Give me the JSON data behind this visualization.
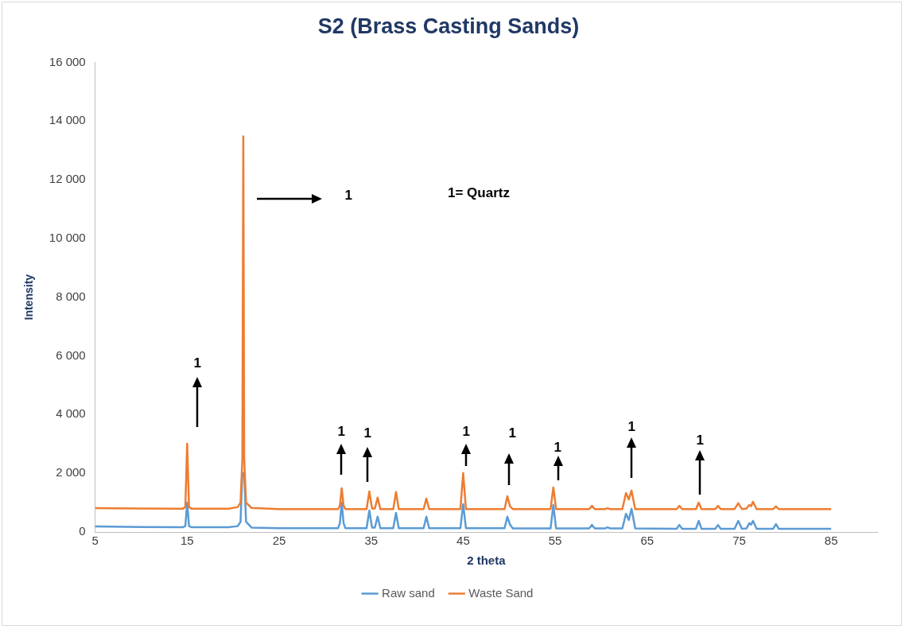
{
  "chart_data": {
    "type": "line",
    "title": "S2 (Brass Casting Sands)",
    "xlabel": "2 theta",
    "ylabel": "Intensity",
    "xlim": [
      5,
      90
    ],
    "xticks": [
      5,
      15,
      25,
      35,
      45,
      55,
      65,
      75,
      85
    ],
    "ylim": [
      0,
      16000
    ],
    "yticks": [
      {
        "value": 0,
        "label": "0"
      },
      {
        "value": 2000,
        "label": "2 000"
      },
      {
        "value": 4000,
        "label": "4 000"
      },
      {
        "value": 6000,
        "label": "6 000"
      },
      {
        "value": 8000,
        "label": "8 000"
      },
      {
        "value": 10000,
        "label": "10 000"
      },
      {
        "value": 12000,
        "label": "12 000"
      },
      {
        "value": 14000,
        "label": "14 000"
      },
      {
        "value": 16000,
        "label": "16 000"
      }
    ],
    "grid": false,
    "legend": "bottom",
    "marker": "none",
    "line_style": "solid",
    "series": [
      {
        "name": "Raw sand",
        "color": "#5b9bd5",
        "x": [
          5,
          10,
          14.5,
          14.8,
          15,
          15.2,
          15.5,
          19.5,
          20.5,
          20.8,
          21.0,
          21.1,
          21.2,
          21.4,
          22,
          25,
          31.4,
          31.6,
          31.8,
          32,
          32.2,
          34.5,
          34.8,
          35.1,
          35.4,
          35.7,
          36,
          37.4,
          37.7,
          38,
          40.7,
          41,
          41.3,
          44.7,
          45,
          45.3,
          49.5,
          49.8,
          50.1,
          50.4,
          54.5,
          54.8,
          55.1,
          58.7,
          59,
          59.3,
          60.4,
          60.7,
          61,
          62.3,
          62.7,
          63,
          63.3,
          63.7,
          68.2,
          68.5,
          68.8,
          70.3,
          70.6,
          70.9,
          72.4,
          72.7,
          73,
          74.5,
          74.9,
          75.3,
          75.8,
          76.1,
          76.3,
          76.5,
          76.9,
          78.7,
          79,
          79.3,
          85
        ],
        "values": [
          190,
          170,
          160,
          200,
          1000,
          200,
          160,
          160,
          200,
          350,
          2000,
          null,
          2000,
          350,
          150,
          130,
          130,
          300,
          1000,
          300,
          130,
          130,
          730,
          150,
          150,
          520,
          130,
          130,
          650,
          130,
          130,
          520,
          130,
          130,
          950,
          130,
          130,
          520,
          250,
          120,
          120,
          920,
          120,
          120,
          240,
          120,
          120,
          160,
          120,
          120,
          620,
          410,
          790,
          120,
          110,
          240,
          110,
          110,
          380,
          110,
          110,
          240,
          110,
          110,
          380,
          110,
          120,
          300,
          250,
          380,
          110,
          110,
          270,
          110,
          110
        ]
      },
      {
        "name": "Waste Sand",
        "color": "#ed7d31",
        "x": [
          5,
          10,
          14.5,
          14.8,
          15,
          15.2,
          15.5,
          19.5,
          20.5,
          20.8,
          21.0,
          21.1,
          21.2,
          21.4,
          22,
          25,
          31.4,
          31.6,
          31.8,
          32,
          32.2,
          34.5,
          34.8,
          35.1,
          35.4,
          35.7,
          36,
          37.4,
          37.7,
          38,
          40.7,
          41,
          41.3,
          44.7,
          45,
          45.3,
          49.5,
          49.8,
          50.1,
          50.4,
          54.5,
          54.8,
          55.1,
          58.7,
          59,
          59.3,
          60.4,
          60.7,
          61,
          62.3,
          62.7,
          63,
          63.3,
          63.7,
          68.2,
          68.5,
          68.8,
          70.3,
          70.6,
          70.9,
          72.4,
          72.7,
          73,
          74.5,
          74.9,
          75.3,
          75.8,
          76.1,
          76.3,
          76.5,
          76.9,
          78.7,
          79,
          79.3,
          85
        ],
        "values": [
          810,
          800,
          790,
          850,
          3010,
          850,
          790,
          790,
          850,
          1000,
          2500,
          13480,
          2500,
          1000,
          820,
          780,
          780,
          900,
          1490,
          900,
          780,
          780,
          1380,
          800,
          800,
          1170,
          780,
          780,
          1360,
          780,
          780,
          1140,
          780,
          780,
          2010,
          780,
          780,
          1220,
          870,
          780,
          780,
          1520,
          780,
          780,
          890,
          780,
          780,
          810,
          780,
          780,
          1330,
          1110,
          1410,
          780,
          780,
          890,
          780,
          780,
          1000,
          780,
          780,
          890,
          780,
          780,
          980,
          780,
          800,
          920,
          880,
          1030,
          780,
          780,
          870,
          780,
          780
        ]
      }
    ],
    "annotations": [
      "1",
      "1",
      "1",
      "1",
      "1",
      "1",
      "1",
      "1",
      "1",
      "1= Quartz"
    ]
  }
}
